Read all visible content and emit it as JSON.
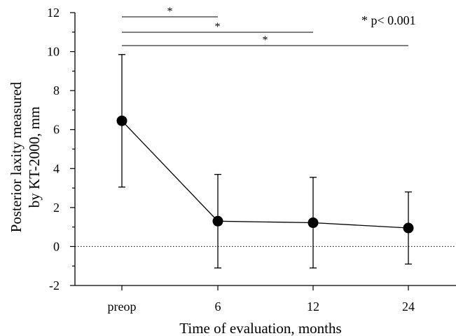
{
  "chart_data": {
    "type": "line",
    "categories": [
      "preop",
      "6",
      "12",
      "24"
    ],
    "series": [
      {
        "values": [
          6.45,
          1.3,
          1.22,
          0.95
        ],
        "err_upper": [
          9.85,
          3.7,
          3.55,
          2.8
        ],
        "err_lower": [
          3.05,
          -1.1,
          -1.1,
          -0.9
        ]
      }
    ],
    "xlabel": "Time of evaluation, months",
    "ylabel_line1": "Posterior laxity measured",
    "ylabel_line2": "by KT-2000, mm",
    "ylim": [
      -2,
      12
    ],
    "yticks": [
      -2,
      0,
      2,
      4,
      6,
      8,
      10,
      12
    ],
    "reference_line": {
      "y": 0,
      "style": "dotted"
    },
    "significance": [
      {
        "from": "preop",
        "to": "6",
        "label": "*"
      },
      {
        "from": "preop",
        "to": "12",
        "label": "*"
      },
      {
        "from": "preop",
        "to": "24",
        "label": "*"
      }
    ],
    "annotation": "* p< 0.001",
    "marker_color": "#000000",
    "line_color": "#000000"
  }
}
